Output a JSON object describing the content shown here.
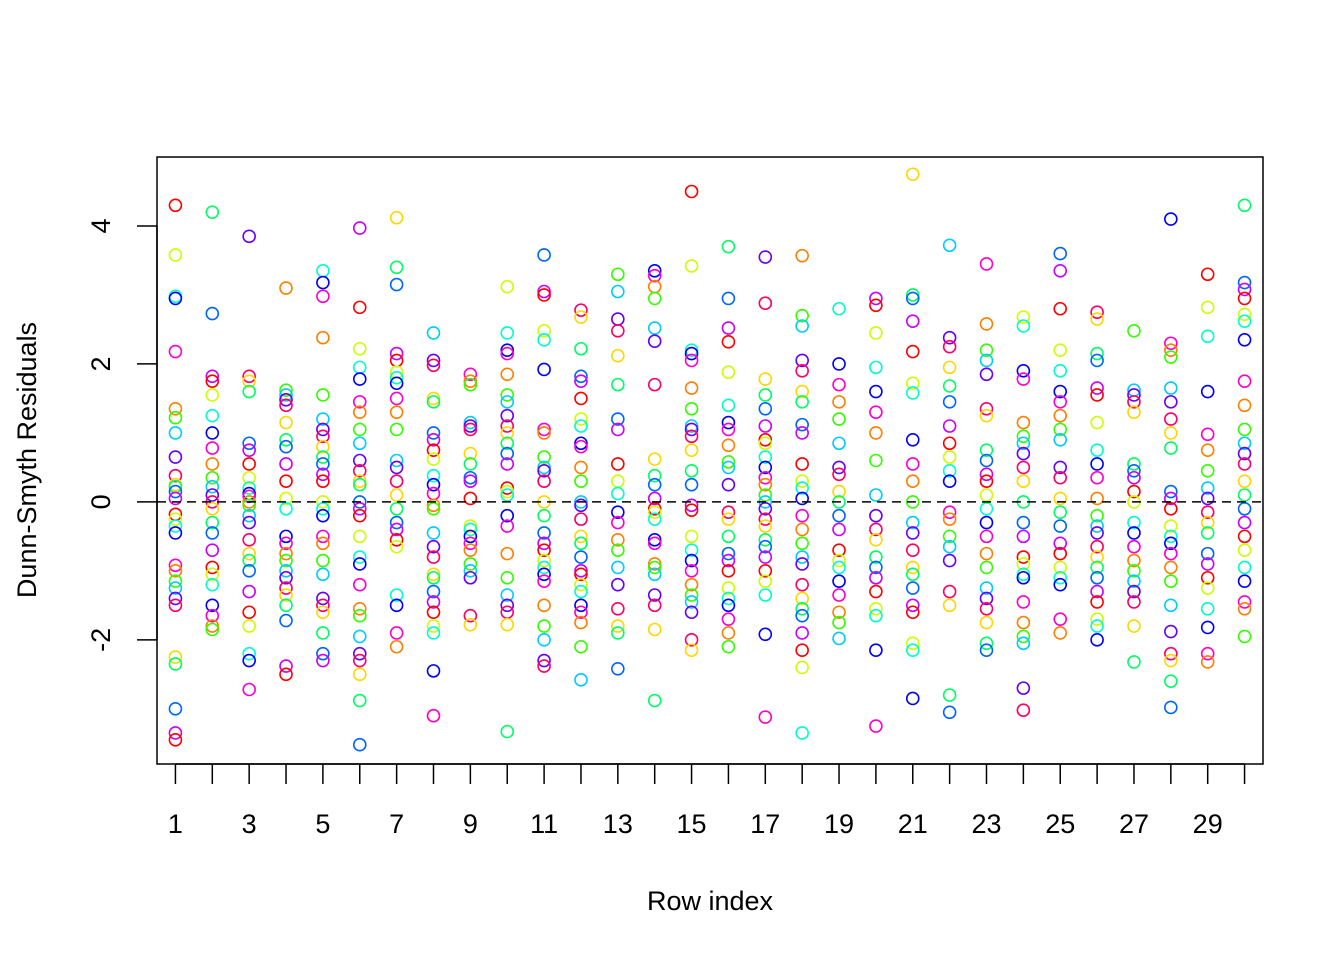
{
  "chart_data": {
    "type": "scatter",
    "title": "",
    "xlabel": "Row index",
    "ylabel": "Dunn-Smyth Residuals",
    "xlim": [
      0.5,
      30.5
    ],
    "ylim": [
      -3.8,
      5.0
    ],
    "x_ticks": [
      1,
      2,
      3,
      4,
      5,
      6,
      7,
      8,
      9,
      10,
      11,
      12,
      13,
      14,
      15,
      16,
      17,
      18,
      19,
      20,
      21,
      22,
      23,
      24,
      25,
      26,
      27,
      28,
      29,
      30
    ],
    "x_tick_labels": [
      "1",
      "",
      "3",
      "",
      "5",
      "",
      "7",
      "",
      "9",
      "",
      "11",
      "",
      "13",
      "",
      "15",
      "",
      "17",
      "",
      "19",
      "",
      "21",
      "",
      "23",
      "",
      "25",
      "",
      "27",
      "",
      "29",
      ""
    ],
    "y_ticks": [
      -2,
      0,
      2,
      4
    ],
    "y_tick_labels": [
      "-2",
      "0",
      "2",
      "4"
    ],
    "reference_line": {
      "y": 0,
      "style": "dashed"
    },
    "grid": false,
    "marker": "open-circle",
    "palette": [
      "#FF0000",
      "#FF8000",
      "#FFD700",
      "#CCFF00",
      "#33FF00",
      "#00FF66",
      "#00FFCC",
      "#00CCFF",
      "#0066FF",
      "#0000FF",
      "#6600FF",
      "#CC00FF",
      "#FF00CC",
      "#FF0066"
    ],
    "rows": [
      {
        "x": 1,
        "values": [
          4.3,
          3.58,
          2.98,
          2.95,
          2.18,
          1.35,
          1.22,
          1.0,
          0.65,
          0.38,
          0.25,
          0.22,
          0.15,
          0.05,
          -0.18,
          -0.25,
          -0.35,
          -0.45,
          -0.92,
          -1.0,
          -1.15,
          -1.25,
          -1.4,
          -1.5,
          -2.25,
          -2.35,
          -3.0,
          -3.35,
          -3.45
        ]
      },
      {
        "x": 2,
        "values": [
          4.2,
          2.73,
          1.82,
          1.75,
          1.55,
          1.25,
          1.0,
          0.78,
          0.55,
          0.35,
          0.22,
          0.1,
          0.0,
          -0.1,
          -0.3,
          -0.45,
          -0.7,
          -0.95,
          -1.05,
          -1.2,
          -1.5,
          -1.65,
          -1.8,
          -1.85
        ]
      },
      {
        "x": 3,
        "values": [
          3.85,
          1.82,
          1.75,
          1.6,
          0.85,
          0.75,
          0.55,
          0.35,
          0.2,
          0.12,
          0.08,
          0.0,
          -0.05,
          -0.2,
          -0.3,
          -0.55,
          -0.75,
          -0.85,
          -1.0,
          -1.3,
          -1.6,
          -1.8,
          -2.2,
          -2.3,
          -2.72
        ]
      },
      {
        "x": 4,
        "values": [
          3.1,
          1.62,
          1.55,
          1.48,
          1.4,
          1.15,
          0.9,
          0.8,
          0.55,
          0.3,
          0.05,
          -0.1,
          -0.5,
          -0.6,
          -0.75,
          -0.85,
          -1.0,
          -1.1,
          -1.25,
          -1.35,
          -1.5,
          -1.72,
          -2.38,
          -2.5
        ]
      },
      {
        "x": 5,
        "values": [
          3.35,
          3.18,
          2.98,
          2.38,
          1.55,
          1.2,
          1.05,
          0.95,
          0.8,
          0.65,
          0.55,
          0.4,
          0.3,
          0.0,
          -0.1,
          -0.2,
          -0.5,
          -0.6,
          -0.85,
          -1.05,
          -1.4,
          -1.5,
          -1.6,
          -1.9,
          -2.2,
          -2.3
        ]
      },
      {
        "x": 6,
        "values": [
          3.97,
          2.82,
          2.22,
          1.95,
          1.78,
          1.45,
          1.3,
          1.05,
          0.85,
          0.6,
          0.45,
          0.3,
          0.25,
          0.0,
          -0.1,
          -0.2,
          -0.5,
          -0.8,
          -0.9,
          -1.2,
          -1.55,
          -1.65,
          -1.95,
          -2.2,
          -2.3,
          -2.5,
          -2.88,
          -3.52
        ]
      },
      {
        "x": 7,
        "values": [
          4.12,
          3.4,
          3.15,
          2.15,
          2.05,
          1.88,
          1.8,
          1.72,
          1.5,
          1.3,
          1.05,
          0.6,
          0.5,
          0.3,
          0.1,
          -0.1,
          -0.3,
          -0.4,
          -0.55,
          -0.65,
          -1.35,
          -1.5,
          -1.9,
          -2.1
        ]
      },
      {
        "x": 8,
        "values": [
          2.45,
          2.05,
          1.98,
          1.5,
          1.45,
          1.0,
          0.9,
          0.75,
          0.62,
          0.38,
          0.25,
          0.12,
          -0.05,
          -0.1,
          -0.45,
          -0.65,
          -0.8,
          -1.05,
          -1.1,
          -1.3,
          -1.45,
          -1.6,
          -1.8,
          -1.9,
          -2.45,
          -3.1
        ]
      },
      {
        "x": 9,
        "values": [
          1.85,
          1.75,
          1.7,
          1.15,
          1.1,
          1.05,
          0.7,
          0.55,
          0.35,
          0.3,
          0.05,
          -0.35,
          -0.4,
          -0.5,
          -0.6,
          -0.7,
          -0.9,
          -1.0,
          -1.1,
          -1.65,
          -1.78
        ]
      },
      {
        "x": 10,
        "values": [
          3.12,
          2.45,
          2.2,
          2.15,
          1.85,
          1.55,
          1.45,
          1.25,
          1.1,
          1.0,
          0.85,
          0.7,
          0.55,
          0.2,
          0.15,
          0.1,
          -0.2,
          -0.35,
          -0.75,
          -1.1,
          -1.35,
          -1.5,
          -1.6,
          -1.78,
          -3.33
        ]
      },
      {
        "x": 11,
        "values": [
          3.58,
          3.05,
          3.0,
          2.48,
          2.35,
          1.92,
          1.05,
          1.0,
          0.65,
          0.5,
          0.45,
          0.3,
          0.0,
          -0.2,
          -0.45,
          -0.6,
          -0.7,
          -0.85,
          -0.95,
          -1.05,
          -1.15,
          -1.5,
          -1.8,
          -2.0,
          -2.3,
          -2.38
        ]
      },
      {
        "x": 12,
        "values": [
          2.78,
          2.68,
          2.22,
          1.82,
          1.75,
          1.5,
          1.2,
          1.1,
          0.85,
          0.8,
          0.5,
          0.3,
          0.0,
          -0.05,
          -0.25,
          -0.5,
          -0.6,
          -0.8,
          -1.0,
          -1.05,
          -1.2,
          -1.3,
          -1.5,
          -1.6,
          -1.75,
          -2.1,
          -2.58
        ]
      },
      {
        "x": 13,
        "values": [
          3.3,
          3.05,
          2.65,
          2.48,
          2.12,
          1.7,
          1.2,
          1.05,
          0.55,
          0.3,
          0.12,
          -0.15,
          -0.3,
          -0.55,
          -0.7,
          -0.95,
          -1.2,
          -1.55,
          -1.8,
          -1.9,
          -2.42
        ]
      },
      {
        "x": 14,
        "values": [
          3.35,
          3.28,
          3.12,
          2.95,
          2.52,
          2.33,
          1.7,
          0.62,
          0.38,
          0.25,
          0.05,
          -0.1,
          -0.15,
          -0.25,
          -0.55,
          -0.6,
          -0.9,
          -0.95,
          -1.05,
          -1.35,
          -1.5,
          -1.85,
          -2.88
        ]
      },
      {
        "x": 15,
        "values": [
          4.5,
          3.42,
          2.2,
          2.15,
          2.05,
          1.65,
          1.35,
          1.1,
          1.05,
          0.95,
          0.75,
          0.45,
          0.25,
          -0.05,
          -0.12,
          -0.5,
          -0.7,
          -0.85,
          -1.0,
          -1.2,
          -1.35,
          -1.45,
          -1.6,
          -2.0,
          -2.15
        ]
      },
      {
        "x": 16,
        "values": [
          3.7,
          2.95,
          2.52,
          2.32,
          1.88,
          1.4,
          1.15,
          1.05,
          0.82,
          0.58,
          0.5,
          0.25,
          -0.15,
          -0.25,
          -0.5,
          -0.75,
          -0.85,
          -1.0,
          -1.25,
          -1.4,
          -1.5,
          -1.7,
          -1.9,
          -2.1
        ]
      },
      {
        "x": 17,
        "values": [
          3.55,
          2.88,
          1.78,
          1.55,
          1.35,
          1.1,
          0.9,
          0.85,
          0.65,
          0.5,
          0.35,
          0.25,
          0.1,
          0.0,
          -0.1,
          -0.25,
          -0.35,
          -0.55,
          -0.65,
          -0.8,
          -1.0,
          -1.15,
          -1.35,
          -1.92,
          -3.12
        ]
      },
      {
        "x": 18,
        "values": [
          3.57,
          2.7,
          2.55,
          2.05,
          1.9,
          1.6,
          1.45,
          1.12,
          1.0,
          0.55,
          0.3,
          0.2,
          0.05,
          -0.2,
          -0.4,
          -0.6,
          -0.8,
          -0.9,
          -1.2,
          -1.4,
          -1.55,
          -1.65,
          -1.9,
          -2.15,
          -2.4,
          -3.35
        ]
      },
      {
        "x": 19,
        "values": [
          2.8,
          2.0,
          1.7,
          1.45,
          1.2,
          0.85,
          0.5,
          0.4,
          0.15,
          0.0,
          -0.2,
          -0.4,
          -0.7,
          -0.85,
          -0.95,
          -1.15,
          -1.35,
          -1.6,
          -1.75,
          -1.98
        ]
      },
      {
        "x": 20,
        "values": [
          2.95,
          2.85,
          2.45,
          1.95,
          1.6,
          1.3,
          1.0,
          0.6,
          0.1,
          -0.2,
          -0.4,
          -0.55,
          -0.8,
          -0.95,
          -1.1,
          -1.3,
          -1.55,
          -1.65,
          -2.15,
          -3.25
        ]
      },
      {
        "x": 21,
        "values": [
          4.75,
          3.0,
          2.95,
          2.62,
          2.18,
          1.72,
          1.58,
          0.9,
          0.55,
          0.3,
          0.0,
          -0.3,
          -0.45,
          -0.7,
          -0.95,
          -1.05,
          -1.25,
          -1.5,
          -1.6,
          -2.05,
          -2.15,
          -2.85
        ]
      },
      {
        "x": 22,
        "values": [
          3.72,
          2.38,
          2.25,
          1.95,
          1.68,
          1.45,
          1.1,
          0.85,
          0.65,
          0.45,
          0.3,
          -0.15,
          -0.25,
          -0.5,
          -0.65,
          -0.85,
          -1.3,
          -1.5,
          -2.8,
          -3.05
        ]
      },
      {
        "x": 23,
        "values": [
          3.45,
          2.58,
          2.2,
          2.05,
          1.85,
          1.35,
          1.25,
          0.75,
          0.6,
          0.4,
          0.3,
          0.1,
          -0.1,
          -0.3,
          -0.5,
          -0.75,
          -0.95,
          -1.25,
          -1.4,
          -1.55,
          -1.75,
          -2.05,
          -2.15
        ]
      },
      {
        "x": 24,
        "values": [
          2.68,
          2.55,
          1.9,
          1.78,
          1.15,
          0.95,
          0.85,
          0.7,
          0.5,
          0.3,
          0.0,
          -0.3,
          -0.5,
          -0.8,
          -0.9,
          -1.05,
          -1.1,
          -1.45,
          -1.75,
          -1.95,
          -2.05,
          -2.7,
          -3.02
        ]
      },
      {
        "x": 25,
        "values": [
          3.6,
          3.35,
          2.8,
          2.2,
          1.9,
          1.6,
          1.45,
          1.25,
          1.05,
          0.9,
          0.5,
          0.35,
          0.05,
          -0.15,
          -0.35,
          -0.6,
          -0.75,
          -0.95,
          -1.1,
          -1.2,
          -1.7,
          -1.9
        ]
      },
      {
        "x": 26,
        "values": [
          2.75,
          2.65,
          2.15,
          2.05,
          1.65,
          1.55,
          1.15,
          0.75,
          0.55,
          0.35,
          0.05,
          -0.2,
          -0.35,
          -0.45,
          -0.65,
          -0.8,
          -0.95,
          -1.1,
          -1.3,
          -1.45,
          -1.7,
          -1.8,
          -2.0
        ]
      },
      {
        "x": 27,
        "values": [
          2.48,
          1.62,
          1.55,
          1.45,
          1.3,
          0.55,
          0.45,
          0.35,
          0.15,
          0.0,
          -0.3,
          -0.45,
          -0.65,
          -0.85,
          -1.0,
          -1.15,
          -1.3,
          -1.45,
          -1.8,
          -2.32
        ]
      },
      {
        "x": 28,
        "values": [
          4.1,
          2.3,
          2.2,
          2.1,
          1.65,
          1.45,
          1.2,
          1.0,
          0.78,
          0.15,
          0.05,
          -0.1,
          -0.35,
          -0.5,
          -0.6,
          -0.75,
          -0.95,
          -1.15,
          -1.5,
          -1.88,
          -2.2,
          -2.3,
          -2.6,
          -2.98
        ]
      },
      {
        "x": 29,
        "values": [
          3.3,
          2.82,
          2.4,
          1.6,
          0.98,
          0.75,
          0.45,
          0.2,
          0.05,
          -0.15,
          -0.3,
          -0.45,
          -0.75,
          -0.9,
          -1.1,
          -1.25,
          -1.55,
          -1.82,
          -2.2,
          -2.32
        ]
      },
      {
        "x": 30,
        "values": [
          4.3,
          3.18,
          3.08,
          2.95,
          2.72,
          2.62,
          2.35,
          1.75,
          1.4,
          1.05,
          0.85,
          0.7,
          0.55,
          0.3,
          0.1,
          -0.1,
          -0.3,
          -0.5,
          -0.7,
          -0.95,
          -1.15,
          -1.45,
          -1.55,
          -1.95
        ]
      }
    ]
  }
}
